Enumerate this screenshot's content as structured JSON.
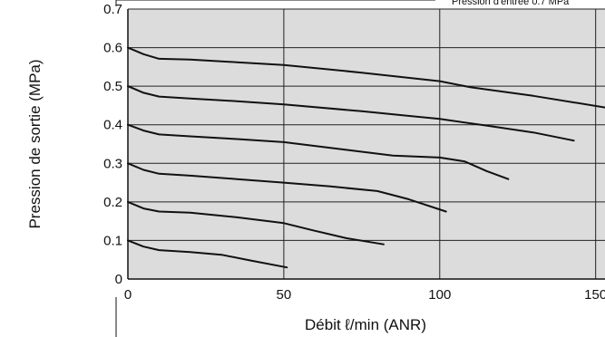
{
  "chart_data": {
    "type": "line",
    "title": "",
    "header_fragment": "Pression d'entrée 0.7 MPa",
    "xlabel": "Débit ℓ/min (ANR)",
    "ylabel": "Pression de sortie (MPa)",
    "xlim": [
      0,
      153
    ],
    "ylim": [
      0,
      0.7
    ],
    "x_ticks": [
      "0",
      "50",
      "100",
      "150"
    ],
    "x_tick_values": [
      0,
      50,
      100,
      150
    ],
    "y_ticks": [
      "0",
      "0.1",
      "0.2",
      "0.3",
      "0.4",
      "0.5",
      "0.6",
      "0.7"
    ],
    "y_tick_values": [
      0,
      0.1,
      0.2,
      0.3,
      0.4,
      0.5,
      0.6,
      0.7
    ],
    "grid": true,
    "background_color": "#dcdcdc",
    "line_color": "#111111",
    "series": [
      {
        "x": [
          0,
          5,
          10,
          20,
          35,
          50,
          75,
          100,
          110,
          130,
          153
        ],
        "y": [
          0.6,
          0.583,
          0.571,
          0.569,
          0.562,
          0.555,
          0.535,
          0.513,
          0.497,
          0.475,
          0.445
        ]
      },
      {
        "x": [
          0,
          5,
          10,
          20,
          35,
          50,
          75,
          100,
          115,
          130,
          143
        ],
        "y": [
          0.5,
          0.483,
          0.473,
          0.468,
          0.461,
          0.453,
          0.435,
          0.415,
          0.398,
          0.38,
          0.359
        ]
      },
      {
        "x": [
          0,
          5,
          10,
          20,
          35,
          50,
          70,
          85,
          100,
          108,
          115,
          122
        ],
        "y": [
          0.4,
          0.385,
          0.375,
          0.37,
          0.363,
          0.355,
          0.335,
          0.32,
          0.315,
          0.305,
          0.28,
          0.259
        ]
      },
      {
        "x": [
          0,
          5,
          10,
          20,
          35,
          50,
          65,
          80,
          90,
          102
        ],
        "y": [
          0.3,
          0.283,
          0.273,
          0.268,
          0.259,
          0.25,
          0.24,
          0.228,
          0.207,
          0.175
        ]
      },
      {
        "x": [
          0,
          5,
          10,
          20,
          35,
          50,
          60,
          70,
          82
        ],
        "y": [
          0.2,
          0.183,
          0.175,
          0.172,
          0.16,
          0.145,
          0.125,
          0.106,
          0.09
        ]
      },
      {
        "x": [
          0,
          5,
          10,
          20,
          30,
          40,
          51
        ],
        "y": [
          0.1,
          0.084,
          0.075,
          0.07,
          0.063,
          0.047,
          0.03
        ]
      }
    ]
  }
}
